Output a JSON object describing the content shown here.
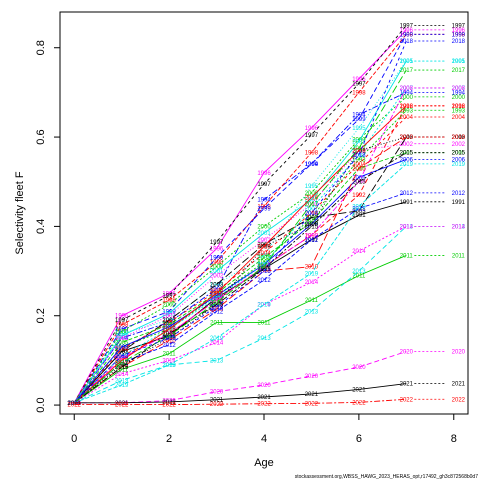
{
  "chart_data": {
    "type": "line",
    "title": "",
    "xlabel": "Age",
    "ylabel": "Selectivity fleet F",
    "xlim": [
      -0.3,
      8.3
    ],
    "ylim": [
      -0.02,
      0.88
    ],
    "xticks": [
      "0",
      "2",
      "4",
      "6",
      "8"
    ],
    "yticks": [
      "0.0",
      "0.2",
      "0.4",
      "0.6",
      "0.8"
    ],
    "grid": false,
    "footer": "stockassessment.org,WBSS_HAWG_2023_HERAS_opt,r17492_gh3c872568b0d7",
    "x": [
      0,
      1,
      2,
      3,
      4,
      5,
      6,
      7
    ],
    "series": [
      {
        "name": "1991",
        "color": "#000000",
        "values": [
          0.005,
          0.12,
          0.155,
          0.24,
          0.305,
          0.37,
          0.425,
          0.455
        ]
      },
      {
        "name": "1992",
        "color": "#ff0000",
        "values": [
          0.005,
          0.11,
          0.16,
          0.235,
          0.31,
          0.38,
          0.47,
          0.67
        ]
      },
      {
        "name": "1993",
        "color": "#00cd00",
        "values": [
          0.005,
          0.13,
          0.17,
          0.245,
          0.32,
          0.42,
          0.55,
          0.66
        ]
      },
      {
        "name": "1994",
        "color": "#0000ff",
        "values": [
          0.005,
          0.15,
          0.185,
          0.26,
          0.46,
          0.54,
          0.65,
          0.7
        ]
      },
      {
        "name": "1995",
        "color": "#00e5e5",
        "values": [
          0.005,
          0.16,
          0.19,
          0.27,
          0.335,
          0.49,
          0.62,
          0.77
        ]
      },
      {
        "name": "1996",
        "color": "#ff00ff",
        "values": [
          0.005,
          0.2,
          0.25,
          0.35,
          0.52,
          0.62,
          0.73,
          0.84
        ]
      },
      {
        "name": "1997",
        "color": "#000000",
        "values": [
          0.005,
          0.19,
          0.245,
          0.365,
          0.495,
          0.605,
          0.72,
          0.85
        ]
      },
      {
        "name": "1998",
        "color": "#ff0000",
        "values": [
          0.005,
          0.18,
          0.235,
          0.32,
          0.445,
          0.565,
          0.7,
          0.83
        ]
      },
      {
        "name": "1999",
        "color": "#0000ff",
        "values": [
          0.005,
          0.17,
          0.21,
          0.33,
          0.44,
          0.54,
          0.64,
          0.83
        ]
      },
      {
        "name": "2000",
        "color": "#00cd00",
        "values": [
          0.005,
          0.165,
          0.225,
          0.31,
          0.4,
          0.475,
          0.595,
          0.69
        ]
      },
      {
        "name": "2001",
        "color": "#00e5e5",
        "values": [
          0.005,
          0.155,
          0.205,
          0.3,
          0.385,
          0.46,
          0.59,
          0.77
        ]
      },
      {
        "name": "2002",
        "color": "#ff00ff",
        "values": [
          0.005,
          0.15,
          0.2,
          0.29,
          0.37,
          0.45,
          0.57,
          0.585
        ]
      },
      {
        "name": "2003",
        "color": "#000000",
        "values": [
          0.005,
          0.12,
          0.19,
          0.27,
          0.36,
          0.42,
          0.435,
          0.6
        ]
      },
      {
        "name": "2004",
        "color": "#ff0000",
        "values": [
          0.005,
          0.125,
          0.185,
          0.255,
          0.34,
          0.43,
          0.54,
          0.645
        ]
      },
      {
        "name": "2005",
        "color": "#00cd00",
        "values": [
          0.005,
          0.14,
          0.18,
          0.25,
          0.33,
          0.41,
          0.53,
          0.565
        ]
      },
      {
        "name": "2006",
        "color": "#0000ff",
        "values": [
          0.005,
          0.13,
          0.175,
          0.245,
          0.315,
          0.405,
          0.51,
          0.55
        ]
      },
      {
        "name": "2007",
        "color": "#00e5e5",
        "values": [
          0.005,
          0.11,
          0.17,
          0.24,
          0.315,
          0.44,
          0.56,
          0.71
        ]
      },
      {
        "name": "2008",
        "color": "#ff00ff",
        "values": [
          0.005,
          0.105,
          0.16,
          0.235,
          0.31,
          0.38,
          0.5,
          0.71
        ]
      },
      {
        "name": "2009",
        "color": "#000000",
        "values": [
          0.005,
          0.09,
          0.15,
          0.225,
          0.355,
          0.405,
          0.57,
          0.6
        ]
      },
      {
        "name": "2010",
        "color": "#ff0000",
        "values": [
          0.005,
          0.085,
          0.145,
          0.215,
          0.3,
          0.31,
          0.53,
          0.6
        ]
      },
      {
        "name": "2011",
        "color": "#00cd00",
        "values": [
          0.005,
          0.08,
          0.115,
          0.185,
          0.185,
          0.235,
          0.29,
          0.335
        ]
      },
      {
        "name": "2012",
        "color": "#0000ff",
        "values": [
          0.005,
          0.095,
          0.135,
          0.21,
          0.28,
          0.37,
          0.44,
          0.475
        ]
      },
      {
        "name": "2013",
        "color": "#00e5e5",
        "values": [
          0.005,
          0.055,
          0.09,
          0.1,
          0.15,
          0.21,
          0.3,
          0.4
        ]
      },
      {
        "name": "2014",
        "color": "#ff00ff",
        "values": [
          0.005,
          0.07,
          0.1,
          0.14,
          0.225,
          0.275,
          0.345,
          0.4
        ]
      },
      {
        "name": "2015",
        "color": "#000000",
        "values": [
          0.005,
          0.085,
          0.16,
          0.225,
          0.305,
          0.4,
          0.5,
          0.565
        ]
      },
      {
        "name": "2016",
        "color": "#ff0000",
        "values": [
          0.005,
          0.1,
          0.17,
          0.25,
          0.355,
          0.465,
          0.57,
          0.67
        ]
      },
      {
        "name": "2017",
        "color": "#00cd00",
        "values": [
          0.005,
          0.095,
          0.155,
          0.23,
          0.31,
          0.45,
          0.575,
          0.75
        ]
      },
      {
        "name": "2018",
        "color": "#0000ff",
        "values": [
          0.005,
          0.11,
          0.15,
          0.22,
          0.3,
          0.43,
          0.56,
          0.815
        ]
      },
      {
        "name": "2019",
        "color": "#00e5e5",
        "values": [
          0.005,
          0.045,
          0.09,
          0.15,
          0.225,
          0.295,
          0.445,
          0.54
        ]
      },
      {
        "name": "2020",
        "color": "#ff00ff",
        "values": [
          0.005,
          0.005,
          0.01,
          0.03,
          0.045,
          0.065,
          0.085,
          0.12
        ]
      },
      {
        "name": "2021",
        "color": "#000000",
        "values": [
          0.005,
          0.005,
          0.007,
          0.012,
          0.018,
          0.025,
          0.035,
          0.048
        ]
      },
      {
        "name": "2022",
        "color": "#ff0000",
        "values": [
          0.001,
          0.001,
          0.001,
          0.002,
          0.003,
          0.004,
          0.006,
          0.013
        ]
      }
    ]
  }
}
